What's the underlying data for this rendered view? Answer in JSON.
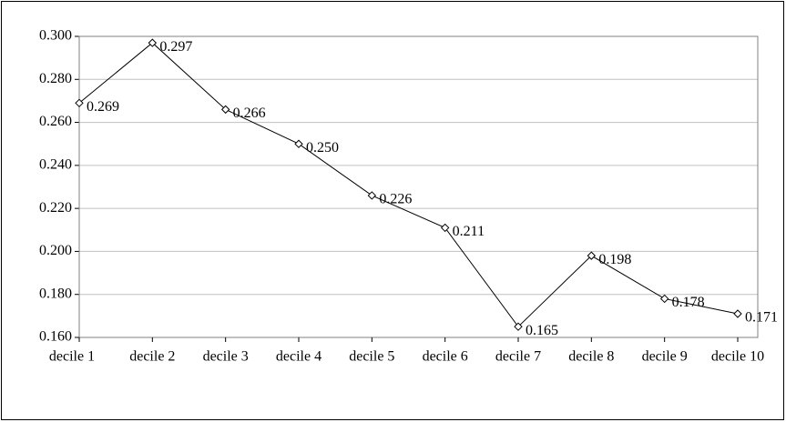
{
  "chart_data": {
    "type": "line",
    "categories": [
      "decile 1",
      "decile 2",
      "decile 3",
      "decile 4",
      "decile 5",
      "decile 6",
      "decile 7",
      "decile 8",
      "decile 9",
      "decile 10"
    ],
    "series": [
      {
        "color": "#000000",
        "values": [
          0.269,
          0.297,
          0.266,
          0.25,
          0.226,
          0.211,
          0.165,
          0.198,
          0.178,
          0.171
        ],
        "value_labels": [
          "0.269",
          "0.297",
          "0.266",
          "0.250",
          "0.226",
          "0.211",
          "0.165",
          "0.198",
          "0.178",
          "0.171"
        ]
      }
    ],
    "ylim": [
      0.16,
      0.3
    ],
    "yticks": [
      {
        "value": 0.16,
        "label": "0.160"
      },
      {
        "value": 0.18,
        "label": "0.180"
      },
      {
        "value": 0.2,
        "label": "0.200"
      },
      {
        "value": 0.22,
        "label": "0.220"
      },
      {
        "value": 0.24,
        "label": "0.240"
      },
      {
        "value": 0.26,
        "label": "0.260"
      },
      {
        "value": 0.28,
        "label": "0.280"
      },
      {
        "value": 0.3,
        "label": "0.300"
      }
    ],
    "grid": true
  }
}
